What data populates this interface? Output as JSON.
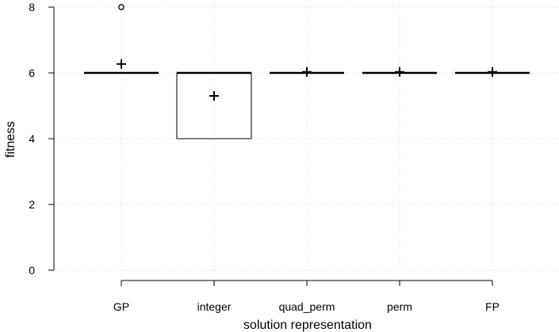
{
  "chart_data": {
    "type": "box",
    "xlabel": "solution representation",
    "ylabel": "fitness",
    "ylim": [
      0,
      8
    ],
    "yticks": [
      0,
      2,
      4,
      6,
      8
    ],
    "grid": true,
    "categories": [
      "GP",
      "integer",
      "quad_perm",
      "perm",
      "FP"
    ],
    "boxes": [
      {
        "category": "GP",
        "q1": 6,
        "median": 6,
        "q3": 6,
        "whisker_low": 6,
        "whisker_high": 6,
        "mean": 6.27,
        "outliers": [
          8
        ]
      },
      {
        "category": "integer",
        "q1": 4,
        "median": 6,
        "q3": 6,
        "whisker_low": 4,
        "whisker_high": 6,
        "mean": 5.3,
        "outliers": []
      },
      {
        "category": "quad_perm",
        "q1": 6,
        "median": 6,
        "q3": 6,
        "whisker_low": 6,
        "whisker_high": 6,
        "mean": 6.03,
        "outliers": []
      },
      {
        "category": "perm",
        "q1": 6,
        "median": 6,
        "q3": 6,
        "whisker_low": 6,
        "whisker_high": 6,
        "mean": 6.03,
        "outliers": []
      },
      {
        "category": "FP",
        "q1": 6,
        "median": 6,
        "q3": 6,
        "whisker_low": 6,
        "whisker_high": 6,
        "mean": 6.03,
        "outliers": []
      }
    ]
  }
}
